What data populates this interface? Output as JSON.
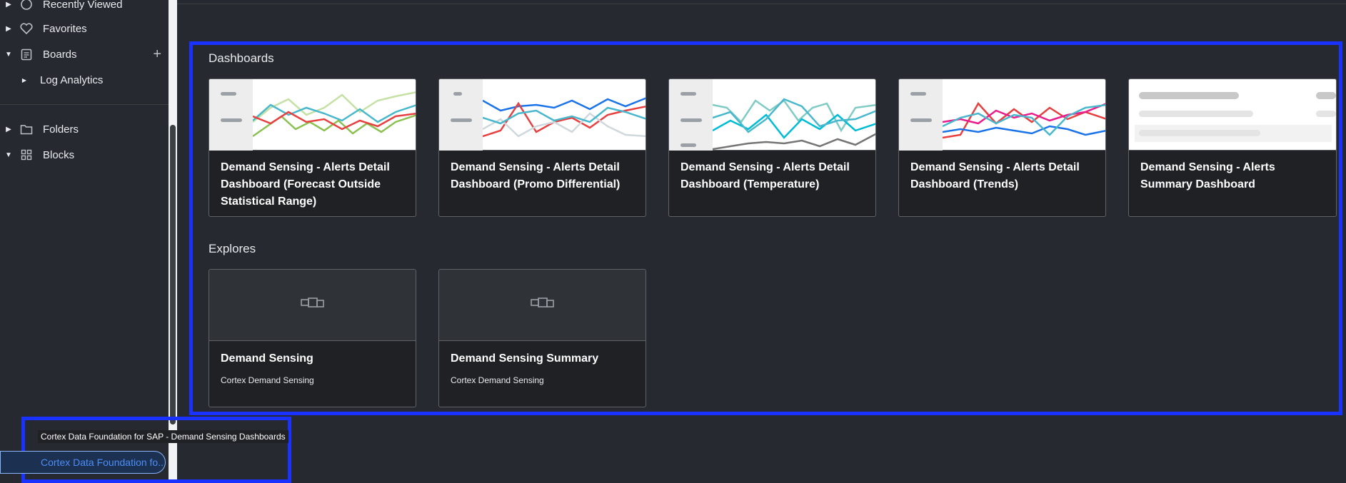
{
  "sidebar": {
    "items": [
      {
        "label": "Recently Viewed",
        "icon": "clock-icon"
      },
      {
        "label": "Favorites",
        "icon": "heart-icon"
      },
      {
        "label": "Boards",
        "icon": "clipboard-icon",
        "action": "+"
      },
      {
        "label": "Log Analytics",
        "icon": ""
      },
      {
        "label": "Folders",
        "icon": "folder-icon"
      },
      {
        "label": "Blocks",
        "icon": "blocks-icon"
      }
    ],
    "active_board": {
      "label": "Cortex Data Foundation fo...",
      "tooltip": "Cortex Data Foundation for SAP - Demand Sensing Dashboards"
    }
  },
  "dashboards": {
    "heading": "Dashboards",
    "cards": [
      {
        "title": "Demand Sensing - Alerts Detail Dashboard (Forecast Outside Statistical Range)"
      },
      {
        "title": "Demand Sensing - Alerts Detail Dashboard (Promo Differential)"
      },
      {
        "title": "Demand Sensing - Alerts Detail Dashboard (Temperature)"
      },
      {
        "title": "Demand Sensing - Alerts Detail Dashboard (Trends)"
      },
      {
        "title": "Demand Sensing - Alerts Summary Dashboard"
      }
    ]
  },
  "explores": {
    "heading": "Explores",
    "cards": [
      {
        "title": "Demand Sensing",
        "subtitle": "Cortex Demand Sensing"
      },
      {
        "title": "Demand Sensing Summary",
        "subtitle": "Cortex Demand Sensing"
      }
    ]
  },
  "colors": {
    "selection": "#1a32ff",
    "background": "#262a30",
    "accent": "#4c8df6"
  }
}
